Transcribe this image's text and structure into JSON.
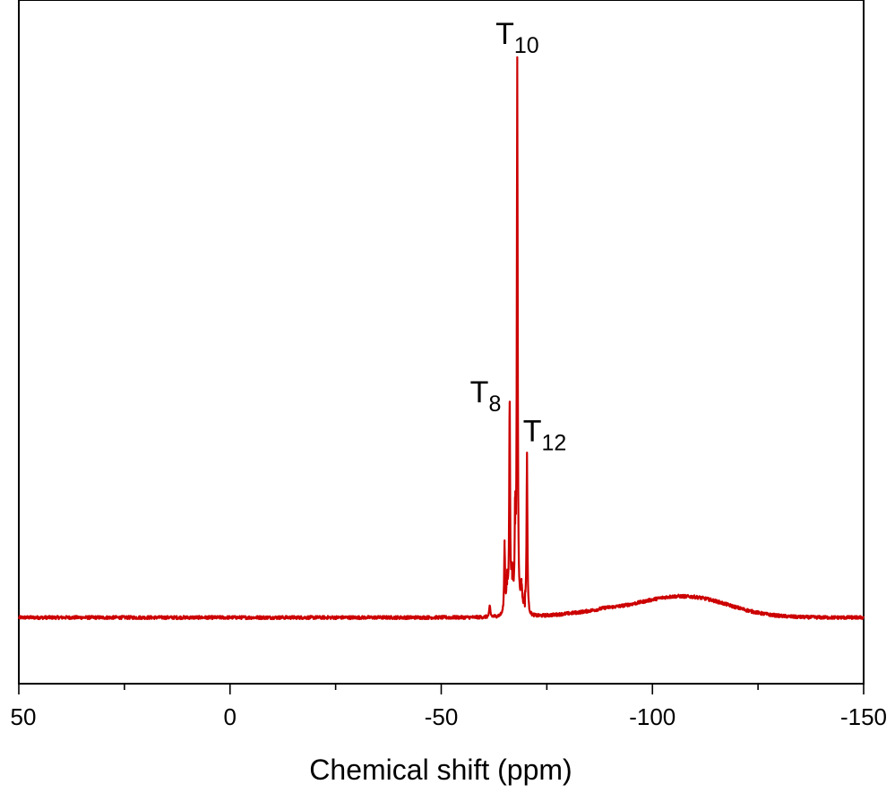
{
  "chart_data": {
    "type": "line",
    "title": "",
    "xlabel": "Chemical shift (ppm)",
    "ylabel": "",
    "xlim": [
      50,
      -150
    ],
    "ylim": [
      -0.12,
      1.12
    ],
    "x_reversed": true,
    "x_ticks": [
      50,
      0,
      -50,
      -100,
      -150
    ],
    "x_tick_labels": [
      "50",
      "0",
      "-50",
      "-100",
      "-150"
    ],
    "x_minor_ticks": [
      25,
      -25,
      -75,
      -125
    ],
    "y_ticks_visible": false,
    "grid": false,
    "legend": "none",
    "color": "#cc0000",
    "baseline": 0,
    "baseline_noise": 0.006,
    "peaks": [
      {
        "x": -61.5,
        "height": 0.02,
        "width": 0.15
      },
      {
        "x": -65.0,
        "height": 0.13,
        "width": 0.12
      },
      {
        "x": -65.6,
        "height": 0.06,
        "width": 0.18
      },
      {
        "x": -66.2,
        "height": 0.39,
        "width": 0.12
      },
      {
        "x": -66.8,
        "height": 0.07,
        "width": 0.25
      },
      {
        "x": -67.5,
        "height": 0.17,
        "width": 0.12
      },
      {
        "x": -68.0,
        "height": 1.0,
        "width": 0.12
      },
      {
        "x": -69.0,
        "height": 0.05,
        "width": 0.2
      },
      {
        "x": -69.8,
        "height": 0.02,
        "width": 0.2
      },
      {
        "x": -70.3,
        "height": 0.29,
        "width": 0.12
      }
    ],
    "broad_hump": {
      "x": -108,
      "height": 0.038,
      "width": 14
    },
    "annotations": [
      {
        "main": "T",
        "sub": "10",
        "x": -68.0,
        "y": 1.04
      },
      {
        "main": "T",
        "sub": "8",
        "x": -60.5,
        "y": 0.39
      },
      {
        "main": "T",
        "sub": "12",
        "x": -74.5,
        "y": 0.32
      }
    ]
  }
}
